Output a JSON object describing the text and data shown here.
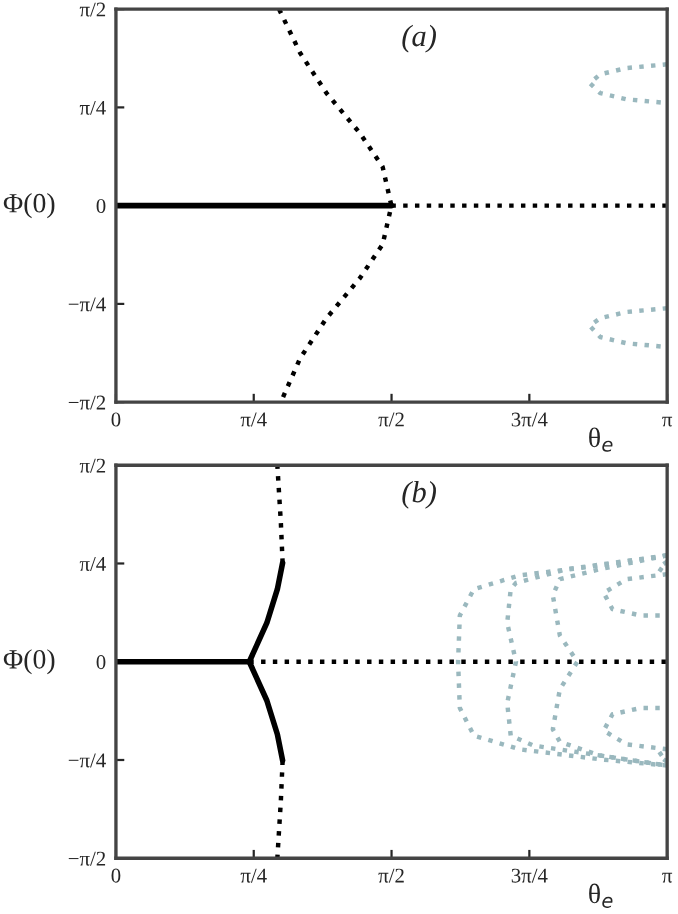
{
  "chart_data": [
    {
      "type": "line",
      "title": "(a)",
      "xlabel": "θ$_{e}$",
      "ylabel": "Φ(0)",
      "xlim": [
        0,
        3.1416
      ],
      "ylim": [
        -1.5708,
        1.5708
      ],
      "xticks": [
        0,
        {
          "value": 0.7854,
          "label": "π/4"
        },
        {
          "value": 1.5708,
          "label": "π/2"
        },
        {
          "value": 2.3562,
          "label": "3π/4"
        },
        {
          "value": 3.1416,
          "label": "π"
        }
      ],
      "yticks": [
        {
          "value": -1.5708,
          "label": "−π/2"
        },
        {
          "value": -0.7854,
          "label": "−π/4"
        },
        0,
        {
          "value": 0.7854,
          "label": "π/4"
        },
        {
          "value": 1.5708,
          "label": "π/2"
        }
      ],
      "grid": false,
      "legend": false,
      "series": [
        {
          "color": "#000000",
          "line_style": "solid",
          "x": [
            0,
            1.57
          ],
          "values": [
            0,
            0
          ]
        },
        {
          "color": "#000000",
          "line_style": "dotted",
          "x": [
            1.57,
            3.1416
          ],
          "values": [
            0,
            0
          ]
        },
        {
          "color": "#000000",
          "line_style": "dotted",
          "x": [
            0.93,
            1.05,
            1.2,
            1.39,
            1.52,
            1.57,
            1.52,
            1.39,
            1.2,
            1.05,
            0.94
          ],
          "values": [
            1.57,
            1.22,
            0.9,
            0.58,
            0.31,
            0,
            -0.31,
            -0.58,
            -0.9,
            -1.22,
            -1.57
          ]
        },
        {
          "color": "#9ab8be",
          "line_style": "dotted",
          "x": [
            3.1416,
            2.91,
            2.76,
            2.7,
            2.76,
            2.91,
            3.1416
          ],
          "values": [
            1.13,
            1.1,
            1.05,
            0.98,
            0.9,
            0.85,
            0.82
          ]
        },
        {
          "color": "#9ab8be",
          "line_style": "dotted",
          "x": [
            3.1416,
            2.91,
            2.76,
            2.7,
            2.76,
            2.91,
            3.1416
          ],
          "values": [
            -0.82,
            -0.85,
            -0.9,
            -0.96,
            -1.05,
            -1.1,
            -1.13
          ]
        }
      ]
    },
    {
      "type": "line",
      "title": "(b)",
      "xlabel": "θ$_{e}$",
      "ylabel": "Φ(0)",
      "xlim": [
        0,
        3.1416
      ],
      "ylim": [
        -1.5708,
        1.5708
      ],
      "xticks": [
        0,
        {
          "value": 0.7854,
          "label": "π/4"
        },
        {
          "value": 1.5708,
          "label": "π/2"
        },
        {
          "value": 2.3562,
          "label": "3π/4"
        },
        {
          "value": 3.1416,
          "label": "π"
        }
      ],
      "yticks": [
        {
          "value": -1.5708,
          "label": "−π/2"
        },
        {
          "value": -0.7854,
          "label": "−π/4"
        },
        0,
        {
          "value": 0.7854,
          "label": "π/4"
        },
        {
          "value": 1.5708,
          "label": "π/2"
        }
      ],
      "grid": false,
      "legend": false,
      "series": [
        {
          "color": "#000000",
          "line_style": "solid",
          "x": [
            0,
            0.76
          ],
          "values": [
            0,
            0
          ]
        },
        {
          "color": "#000000",
          "line_style": "solid",
          "x": [
            0.76,
            0.86,
            0.92,
            0.95
          ],
          "values": [
            0,
            0.31,
            0.58,
            0.79
          ]
        },
        {
          "color": "#000000",
          "line_style": "solid",
          "x": [
            0.76,
            0.86,
            0.92,
            0.95
          ],
          "values": [
            0,
            -0.31,
            -0.58,
            -0.79
          ]
        },
        {
          "color": "#000000",
          "line_style": "dotted",
          "x": [
            0.95,
            0.94,
            0.92
          ],
          "values": [
            0.79,
            1.11,
            1.57
          ]
        },
        {
          "color": "#000000",
          "line_style": "dotted",
          "x": [
            0.95,
            0.94,
            0.92
          ],
          "values": [
            -0.79,
            -1.11,
            -1.57
          ]
        },
        {
          "color": "#000000",
          "line_style": "dotted",
          "x": [
            0.76,
            3.1416
          ],
          "values": [
            0,
            0
          ]
        },
        {
          "color": "#9ab8be",
          "line_style": "dotted",
          "x": [
            3.1416,
            2.76,
            2.3,
            2.04,
            1.96,
            1.95,
            1.96,
            2.04,
            2.3,
            2.76,
            3.1416
          ],
          "values": [
            0.85,
            0.77,
            0.69,
            0.58,
            0.37,
            0,
            -0.37,
            -0.59,
            -0.7,
            -0.78,
            -0.83
          ]
        },
        {
          "color": "#9ab8be",
          "line_style": "dotted",
          "x": [
            3.1416,
            2.57,
            2.28,
            2.25,
            2.23,
            2.28,
            2.23,
            2.25,
            2.38,
            3.1416
          ],
          "values": [
            0.85,
            0.74,
            0.63,
            0.58,
            0.31,
            0,
            -0.33,
            -0.59,
            -0.67,
            -0.83
          ]
        },
        {
          "color": "#9ab8be",
          "line_style": "dotted",
          "x": [
            3.1416,
            2.76,
            2.53,
            2.49,
            2.53,
            2.63,
            2.53,
            2.49,
            2.53,
            2.76,
            3.1416
          ],
          "values": [
            0.85,
            0.74,
            0.66,
            0.53,
            0.21,
            0,
            -0.22,
            -0.54,
            -0.64,
            -0.75,
            -0.83
          ]
        },
        {
          "color": "#9ab8be",
          "line_style": "dotted",
          "x": [
            3.1416,
            2.91,
            2.78,
            2.83,
            2.99,
            3.1416
          ],
          "values": [
            0.7,
            0.66,
            0.55,
            0.42,
            0.37,
            0.37
          ]
        },
        {
          "color": "#9ab8be",
          "line_style": "dotted",
          "x": [
            3.1416,
            2.91,
            2.78,
            2.83,
            2.99,
            3.1416
          ],
          "values": [
            -0.7,
            -0.66,
            -0.55,
            -0.42,
            -0.37,
            -0.37
          ]
        },
        {
          "color": "#9ab8be",
          "line_style": "dotted",
          "x": [
            3.1416,
            3.09,
            3.1416
          ],
          "values": [
            0.8,
            0.75,
            0.7
          ]
        },
        {
          "color": "#9ab8be",
          "line_style": "dotted",
          "x": [
            3.1416,
            3.09,
            3.1416
          ],
          "values": [
            -0.8,
            -0.75,
            -0.7
          ]
        }
      ]
    }
  ]
}
